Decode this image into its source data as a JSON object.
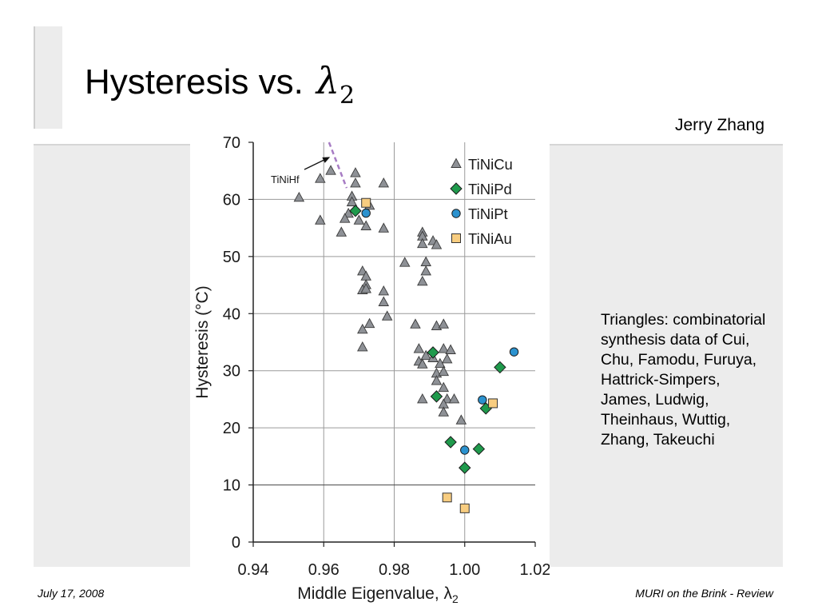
{
  "slide": {
    "title_text": "Hysteresis vs.",
    "title_symbol": "λ",
    "title_symbol_sub": "2",
    "author": "Jerry Zhang",
    "note": "Triangles: combinatorial synthesis data of Cui, Chu, Famodu, Furuya, Hattrick-Simpers, James, Ludwig, Theinhaus, Wuttig, Zhang, Takeuchi",
    "footer_left": "July 17, 2008",
    "footer_right": "MURI on the Brink - Review"
  },
  "colors": {
    "TiNiCu": "#8e9196",
    "TiNiPd": "#1f9a4c",
    "TiNiPt": "#2b92cf",
    "TiNiAu": "#f8cd80",
    "dashed_line": "#a77cc4",
    "grid": "#9a9a9a"
  },
  "chart_data": {
    "type": "scatter",
    "title": "",
    "xlabel": "Middle Eigenvalue, λ2",
    "ylabel": "Hysteresis (°C)",
    "xlim": [
      0.94,
      1.02
    ],
    "ylim": [
      0,
      70
    ],
    "xticks": [
      "0.94",
      "0.96",
      "0.98",
      "1.00",
      "1.02"
    ],
    "yticks": [
      "0",
      "10",
      "20",
      "30",
      "40",
      "50",
      "60",
      "70"
    ],
    "grid": true,
    "legend_position": "top-right",
    "annotation": {
      "text": "TiNiHf"
    },
    "dashed_line": {
      "x": [
        0.9615,
        0.9665
      ],
      "y": [
        70,
        62
      ]
    },
    "series": [
      {
        "name": "TiNiCu",
        "marker": "triangle",
        "points": [
          [
            0.953,
            60.3
          ],
          [
            0.959,
            63.6
          ],
          [
            0.962,
            65.0
          ],
          [
            0.969,
            64.6
          ],
          [
            0.969,
            62.8
          ],
          [
            0.968,
            60.5
          ],
          [
            0.968,
            59.5
          ],
          [
            0.967,
            57.5
          ],
          [
            0.966,
            56.6
          ],
          [
            0.959,
            56.3
          ],
          [
            0.97,
            56.3
          ],
          [
            0.965,
            54.2
          ],
          [
            0.972,
            55.3
          ],
          [
            0.973,
            58.9
          ],
          [
            0.977,
            62.8
          ],
          [
            0.977,
            54.9
          ],
          [
            0.971,
            47.4
          ],
          [
            0.972,
            46.5
          ],
          [
            0.972,
            45.0
          ],
          [
            0.971,
            44.1
          ],
          [
            0.972,
            44.3
          ],
          [
            0.977,
            43.9
          ],
          [
            0.977,
            42.0
          ],
          [
            0.978,
            39.5
          ],
          [
            0.973,
            38.2
          ],
          [
            0.971,
            37.2
          ],
          [
            0.971,
            34.1
          ],
          [
            0.983,
            48.9
          ],
          [
            0.988,
            54.2
          ],
          [
            0.988,
            53.5
          ],
          [
            0.988,
            52.2
          ],
          [
            0.991,
            52.7
          ],
          [
            0.992,
            52.0
          ],
          [
            0.989,
            49.0
          ],
          [
            0.989,
            47.4
          ],
          [
            0.988,
            45.6
          ],
          [
            0.986,
            38.1
          ],
          [
            0.992,
            37.8
          ],
          [
            0.994,
            38.1
          ],
          [
            0.987,
            33.8
          ],
          [
            0.989,
            32.6
          ],
          [
            0.987,
            31.6
          ],
          [
            0.988,
            31.1
          ],
          [
            0.991,
            32.2
          ],
          [
            0.993,
            31.2
          ],
          [
            0.994,
            33.8
          ],
          [
            0.996,
            33.6
          ],
          [
            0.995,
            32.0
          ],
          [
            0.992,
            29.5
          ],
          [
            0.992,
            28.2
          ],
          [
            0.994,
            29.8
          ],
          [
            0.994,
            27.0
          ],
          [
            0.988,
            25.0
          ],
          [
            0.995,
            25.0
          ],
          [
            0.997,
            25.0
          ],
          [
            0.994,
            24.1
          ],
          [
            0.994,
            22.7
          ],
          [
            0.999,
            21.3
          ]
        ]
      },
      {
        "name": "TiNiPd",
        "marker": "diamond",
        "points": [
          [
            0.969,
            58.0
          ],
          [
            0.991,
            33.2
          ],
          [
            0.992,
            25.5
          ],
          [
            1.01,
            30.6
          ],
          [
            1.006,
            23.4
          ],
          [
            0.996,
            17.5
          ],
          [
            1.004,
            16.3
          ],
          [
            1.0,
            13.0
          ]
        ]
      },
      {
        "name": "TiNiPt",
        "marker": "circle",
        "points": [
          [
            0.972,
            57.6
          ],
          [
            1.014,
            33.3
          ],
          [
            1.005,
            24.9
          ],
          [
            1.0,
            16.1
          ]
        ]
      },
      {
        "name": "TiNiAu",
        "marker": "square",
        "points": [
          [
            0.972,
            59.4
          ],
          [
            1.008,
            24.3
          ],
          [
            0.995,
            7.8
          ],
          [
            1.0,
            5.9
          ]
        ]
      }
    ]
  }
}
